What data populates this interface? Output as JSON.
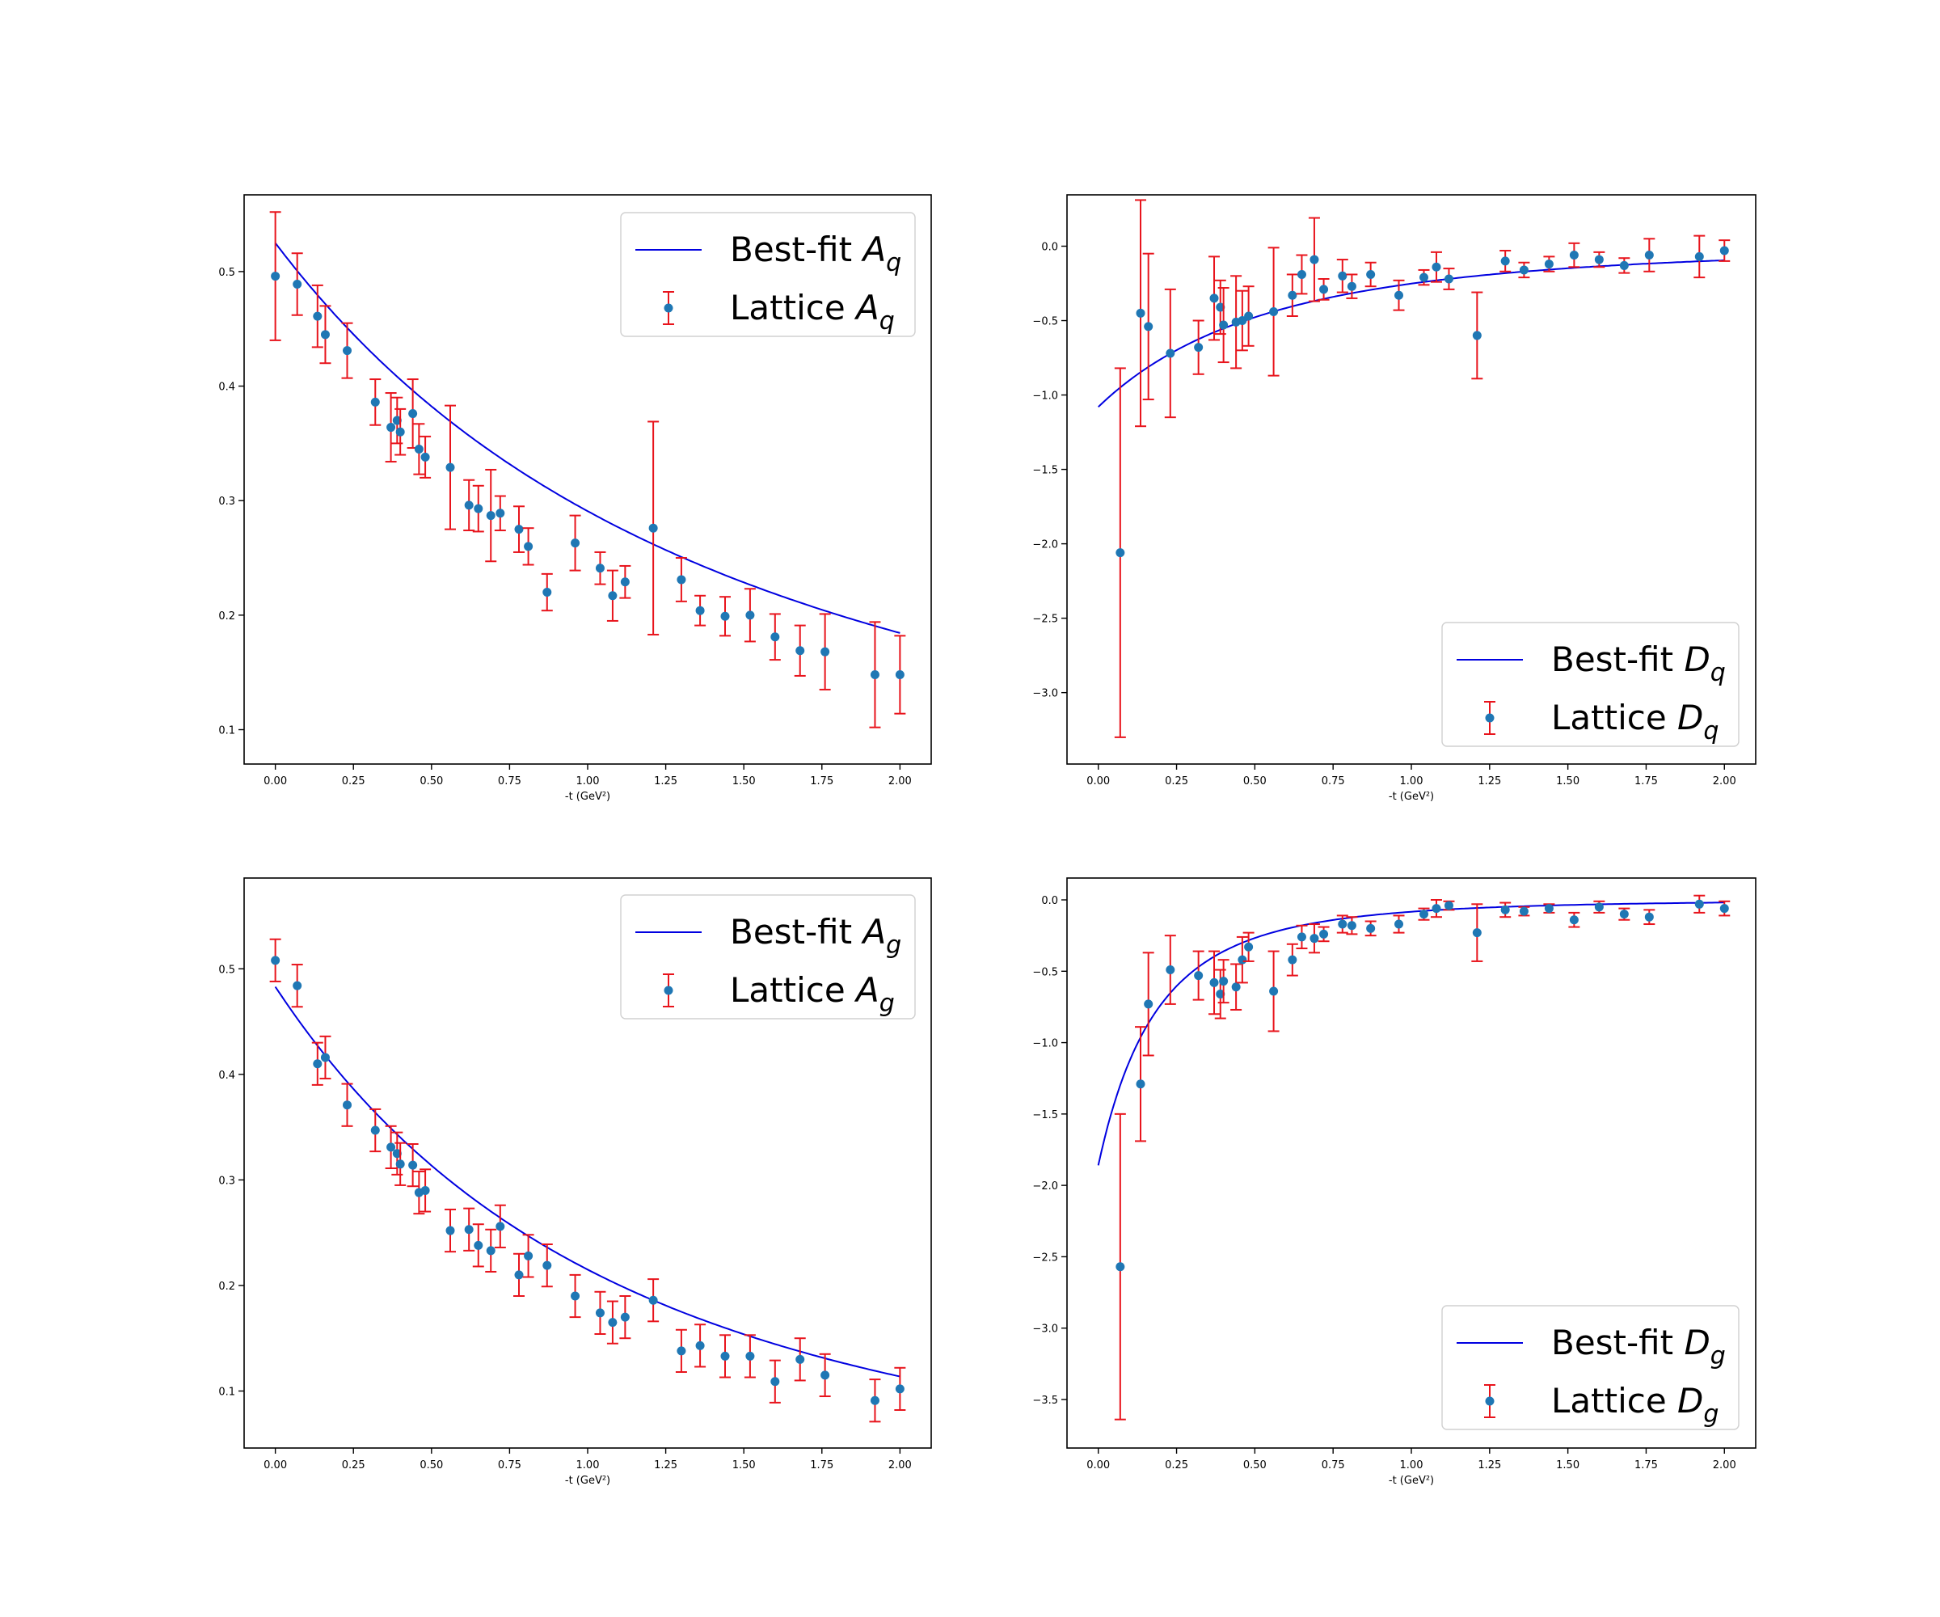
{
  "chart_data": [
    {
      "type": "scatter",
      "xlabel": "-t (GeV²)",
      "xlim": [
        -0.1,
        2.1
      ],
      "ylim": [
        0.07,
        0.567
      ],
      "xticks": [
        0.0,
        0.25,
        0.5,
        0.75,
        1.0,
        1.25,
        1.5,
        1.75,
        2.0
      ],
      "xtick_labels": [
        "0.00",
        "0.25",
        "0.50",
        "0.75",
        "1.00",
        "1.25",
        "1.50",
        "1.75",
        "2.00"
      ],
      "yticks": [
        0.1,
        0.2,
        0.3,
        0.4,
        0.5
      ],
      "ytick_labels": [
        "0.1",
        "0.2",
        "0.3",
        "0.4",
        "0.5"
      ],
      "legend_position": "upper right",
      "legend": [
        {
          "text": "Best-fit ",
          "sym": "A",
          "sub": "q",
          "kind": "line"
        },
        {
          "text": "Lattice ",
          "sym": "A",
          "sub": "q",
          "kind": "errorbar"
        }
      ],
      "fit": {
        "name": "Best-fit A_q",
        "form": "dipole",
        "A": 0.525,
        "M2": 2.91
      },
      "series": [
        {
          "name": "Lattice A_q",
          "x": [
            0.0,
            0.07,
            0.135,
            0.16,
            0.23,
            0.32,
            0.37,
            0.39,
            0.4,
            0.44,
            0.46,
            0.48,
            0.56,
            0.62,
            0.65,
            0.69,
            0.72,
            0.78,
            0.81,
            0.87,
            0.96,
            1.04,
            1.08,
            1.12,
            1.21,
            1.3,
            1.36,
            1.44,
            1.52,
            1.6,
            1.68,
            1.76,
            1.92,
            2.0
          ],
          "y": [
            0.496,
            0.489,
            0.461,
            0.445,
            0.431,
            0.386,
            0.364,
            0.37,
            0.36,
            0.376,
            0.345,
            0.338,
            0.329,
            0.296,
            0.293,
            0.287,
            0.289,
            0.275,
            0.26,
            0.22,
            0.263,
            0.241,
            0.217,
            0.229,
            0.276,
            0.231,
            0.204,
            0.199,
            0.2,
            0.181,
            0.169,
            0.168,
            0.148,
            0.148
          ],
          "err": [
            0.056,
            0.027,
            0.027,
            0.025,
            0.024,
            0.02,
            0.03,
            0.02,
            0.02,
            0.03,
            0.022,
            0.018,
            0.054,
            0.022,
            0.02,
            0.04,
            0.015,
            0.02,
            0.016,
            0.016,
            0.024,
            0.014,
            0.022,
            0.014,
            0.093,
            0.019,
            0.013,
            0.017,
            0.023,
            0.02,
            0.022,
            0.033,
            0.046,
            0.034
          ]
        }
      ]
    },
    {
      "type": "scatter",
      "xlabel": "-t (GeV²)",
      "xlim": [
        -0.1,
        2.1
      ],
      "ylim": [
        -3.48,
        0.345
      ],
      "xticks": [
        0.0,
        0.25,
        0.5,
        0.75,
        1.0,
        1.25,
        1.5,
        1.75,
        2.0
      ],
      "xtick_labels": [
        "0.00",
        "0.25",
        "0.50",
        "0.75",
        "1.00",
        "1.25",
        "1.50",
        "1.75",
        "2.00"
      ],
      "yticks": [
        0.0,
        -0.5,
        -1.0,
        -1.5,
        -2.0,
        -2.5,
        -3.0
      ],
      "ytick_labels": [
        "0.0",
        "−0.5",
        "−1.0",
        "−1.5",
        "−2.0",
        "−2.5",
        "−3.0"
      ],
      "legend_position": "lower right",
      "legend": [
        {
          "text": "Best-fit ",
          "sym": "D",
          "sub": "q",
          "kind": "line"
        },
        {
          "text": "Lattice ",
          "sym": "D",
          "sub": "q",
          "kind": "errorbar"
        }
      ],
      "fit": {
        "name": "Best-fit D_q",
        "form": "tripole",
        "A": -1.08,
        "M2": 1.6
      },
      "series": [
        {
          "name": "Lattice D_q",
          "x": [
            0.07,
            0.135,
            0.16,
            0.23,
            0.32,
            0.37,
            0.39,
            0.4,
            0.44,
            0.46,
            0.48,
            0.56,
            0.62,
            0.65,
            0.69,
            0.72,
            0.78,
            0.81,
            0.87,
            0.96,
            1.04,
            1.08,
            1.12,
            1.21,
            1.3,
            1.36,
            1.44,
            1.52,
            1.6,
            1.68,
            1.76,
            1.92,
            2.0
          ],
          "y": [
            -2.06,
            -0.45,
            -0.54,
            -0.72,
            -0.68,
            -0.35,
            -0.41,
            -0.53,
            -0.51,
            -0.5,
            -0.47,
            -0.44,
            -0.33,
            -0.19,
            -0.09,
            -0.29,
            -0.2,
            -0.27,
            -0.19,
            -0.33,
            -0.21,
            -0.14,
            -0.22,
            -0.6,
            -0.1,
            -0.16,
            -0.12,
            -0.06,
            -0.09,
            -0.13,
            -0.06,
            -0.07,
            -0.03
          ],
          "err": [
            1.24,
            0.76,
            0.49,
            0.43,
            0.18,
            0.28,
            0.18,
            0.25,
            0.31,
            0.2,
            0.2,
            0.43,
            0.14,
            0.13,
            0.28,
            0.07,
            0.11,
            0.08,
            0.08,
            0.1,
            0.05,
            0.1,
            0.07,
            0.29,
            0.07,
            0.05,
            0.05,
            0.08,
            0.05,
            0.05,
            0.11,
            0.14,
            0.07
          ]
        }
      ]
    },
    {
      "type": "scatter",
      "xlabel": "-t (GeV²)",
      "xlim": [
        -0.1,
        2.1
      ],
      "ylim": [
        0.046,
        0.586
      ],
      "xticks": [
        0.0,
        0.25,
        0.5,
        0.75,
        1.0,
        1.25,
        1.5,
        1.75,
        2.0
      ],
      "xtick_labels": [
        "0.00",
        "0.25",
        "0.50",
        "0.75",
        "1.00",
        "1.25",
        "1.50",
        "1.75",
        "2.00"
      ],
      "yticks": [
        0.1,
        0.2,
        0.3,
        0.4,
        0.5
      ],
      "ytick_labels": [
        "0.1",
        "0.2",
        "0.3",
        "0.4",
        "0.5"
      ],
      "legend_position": "upper right",
      "legend": [
        {
          "text": "Best-fit ",
          "sym": "A",
          "sub": "g",
          "kind": "line"
        },
        {
          "text": "Lattice ",
          "sym": "A",
          "sub": "g",
          "kind": "errorbar"
        }
      ],
      "fit": {
        "name": "Best-fit A_g",
        "form": "tripole",
        "A": 0.483,
        "M2": 3.23
      },
      "series": [
        {
          "name": "Lattice A_g",
          "x": [
            0.0,
            0.07,
            0.135,
            0.16,
            0.23,
            0.32,
            0.37,
            0.39,
            0.4,
            0.44,
            0.46,
            0.48,
            0.56,
            0.62,
            0.65,
            0.69,
            0.72,
            0.78,
            0.81,
            0.87,
            0.96,
            1.04,
            1.08,
            1.12,
            1.21,
            1.3,
            1.36,
            1.44,
            1.52,
            1.6,
            1.68,
            1.76,
            1.92,
            2.0
          ],
          "y": [
            0.508,
            0.484,
            0.41,
            0.416,
            0.371,
            0.347,
            0.331,
            0.325,
            0.315,
            0.314,
            0.288,
            0.29,
            0.252,
            0.253,
            0.238,
            0.233,
            0.256,
            0.21,
            0.228,
            0.219,
            0.19,
            0.174,
            0.165,
            0.17,
            0.186,
            0.138,
            0.143,
            0.133,
            0.133,
            0.109,
            0.13,
            0.115,
            0.091,
            0.102
          ]
        }
      ]
    },
    {
      "type": "scatter",
      "xlabel": "-t (GeV²)",
      "xlim": [
        -0.1,
        2.1
      ],
      "ylim": [
        -3.84,
        0.153
      ],
      "xticks": [
        0.0,
        0.25,
        0.5,
        0.75,
        1.0,
        1.25,
        1.5,
        1.75,
        2.0
      ],
      "xtick_labels": [
        "0.00",
        "0.25",
        "0.50",
        "0.75",
        "1.00",
        "1.25",
        "1.50",
        "1.75",
        "2.00"
      ],
      "yticks": [
        0.0,
        -0.5,
        -1.0,
        -1.5,
        -2.0,
        -2.5,
        -3.0,
        -3.5
      ],
      "ytick_labels": [
        "0.0",
        "−0.5",
        "−1.0",
        "−1.5",
        "−2.0",
        "−2.5",
        "−3.0",
        "−3.5"
      ],
      "legend_position": "lower right",
      "legend": [
        {
          "text": "Best-fit ",
          "sym": "D",
          "sub": "g",
          "kind": "line"
        },
        {
          "text": "Lattice ",
          "sym": "D",
          "sub": "g",
          "kind": "errorbar"
        }
      ],
      "fit": {
        "name": "Best-fit D_g",
        "form": "tripole",
        "A": -1.86,
        "M2": 0.55
      },
      "series": [
        {
          "name": "Lattice D_g",
          "x": [
            0.07,
            0.135,
            0.16,
            0.23,
            0.32,
            0.37,
            0.39,
            0.4,
            0.44,
            0.46,
            0.48,
            0.56,
            0.62,
            0.65,
            0.69,
            0.72,
            0.78,
            0.81,
            0.87,
            0.96,
            1.04,
            1.08,
            1.12,
            1.21,
            1.3,
            1.36,
            1.44,
            1.52,
            1.6,
            1.68,
            1.76,
            1.92,
            2.0
          ],
          "y": [
            -2.57,
            -1.29,
            -0.73,
            -0.49,
            -0.53,
            -0.58,
            -0.66,
            -0.57,
            -0.61,
            -0.42,
            -0.33,
            -0.64,
            -0.42,
            -0.26,
            -0.27,
            -0.24,
            -0.17,
            -0.18,
            -0.2,
            -0.17,
            -0.1,
            -0.06,
            -0.04,
            -0.23,
            -0.07,
            -0.08,
            -0.06,
            -0.14,
            -0.05,
            -0.1,
            -0.12,
            -0.03,
            -0.06
          ],
          "err": [
            1.07,
            0.4,
            0.36,
            0.24,
            0.17,
            0.22,
            0.17,
            0.15,
            0.16,
            0.16,
            0.1,
            0.28,
            0.11,
            0.08,
            0.1,
            0.05,
            0.06,
            0.06,
            0.05,
            0.06,
            0.04,
            0.06,
            0.03,
            0.2,
            0.05,
            0.03,
            0.03,
            0.05,
            0.04,
            0.04,
            0.05,
            0.06,
            0.05
          ]
        }
      ]
    }
  ]
}
